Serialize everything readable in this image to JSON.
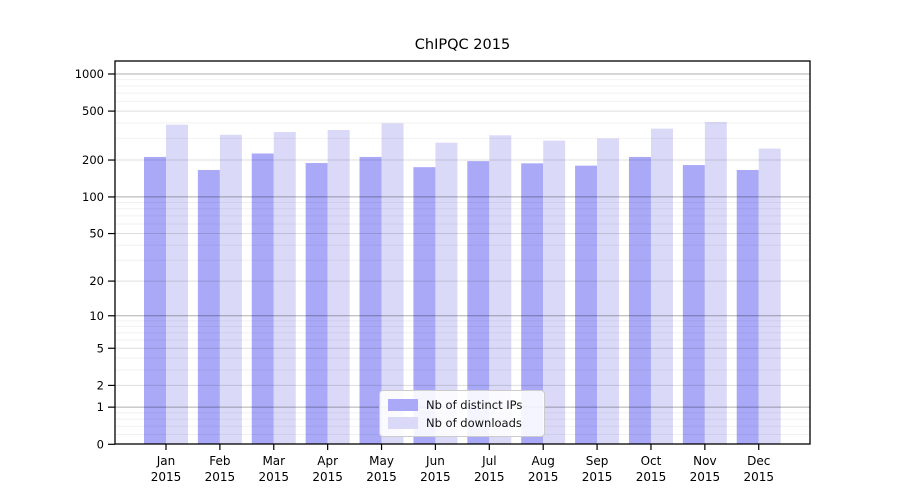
{
  "chart_data": {
    "type": "bar",
    "title": "ChIPQC 2015",
    "categories": [
      "Jan 2015",
      "Feb 2015",
      "Mar 2015",
      "Apr 2015",
      "May 2015",
      "Jun 2015",
      "Jul 2015",
      "Aug 2015",
      "Sep 2015",
      "Oct 2015",
      "Nov 2015",
      "Dec 2015"
    ],
    "series": [
      {
        "name": "Nb of distinct IPs",
        "color": "#a9a9f8",
        "values": [
          212,
          166,
          226,
          189,
          212,
          175,
          196,
          188,
          180,
          212,
          182,
          166
        ]
      },
      {
        "name": "Nb of downloads",
        "color": "#dadaf8",
        "values": [
          388,
          321,
          338,
          351,
          398,
          277,
          318,
          288,
          300,
          360,
          408,
          248
        ]
      }
    ],
    "y_axis": {
      "scale": "log1p",
      "ticks": [
        0,
        1,
        2,
        5,
        10,
        20,
        50,
        100,
        200,
        500,
        1000
      ],
      "range": [
        0,
        1000
      ]
    },
    "x_axis": {
      "label": "",
      "tick_style": "two-line month/year"
    },
    "grid": "both",
    "legend_position": "bottom-center"
  }
}
